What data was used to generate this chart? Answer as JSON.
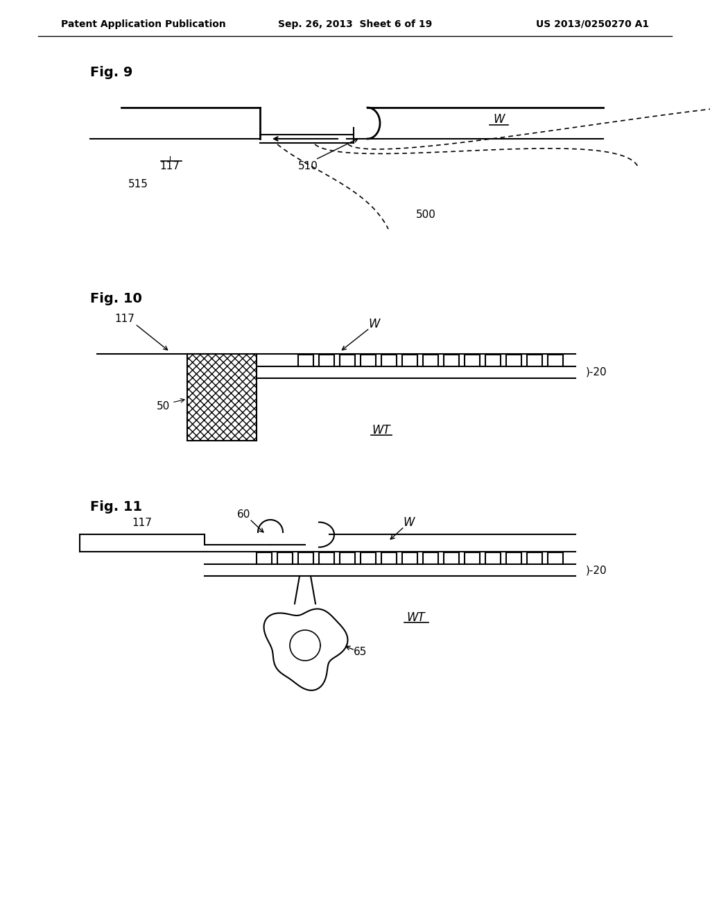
{
  "header_left": "Patent Application Publication",
  "header_center": "Sep. 26, 2013  Sheet 6 of 19",
  "header_right": "US 2013/0250270 A1",
  "fig9_label": "Fig. 9",
  "fig10_label": "Fig. 10",
  "fig11_label": "Fig. 11",
  "background_color": "#ffffff",
  "line_color": "#000000",
  "hatch_color": "#000000",
  "dashed_color": "#555555"
}
